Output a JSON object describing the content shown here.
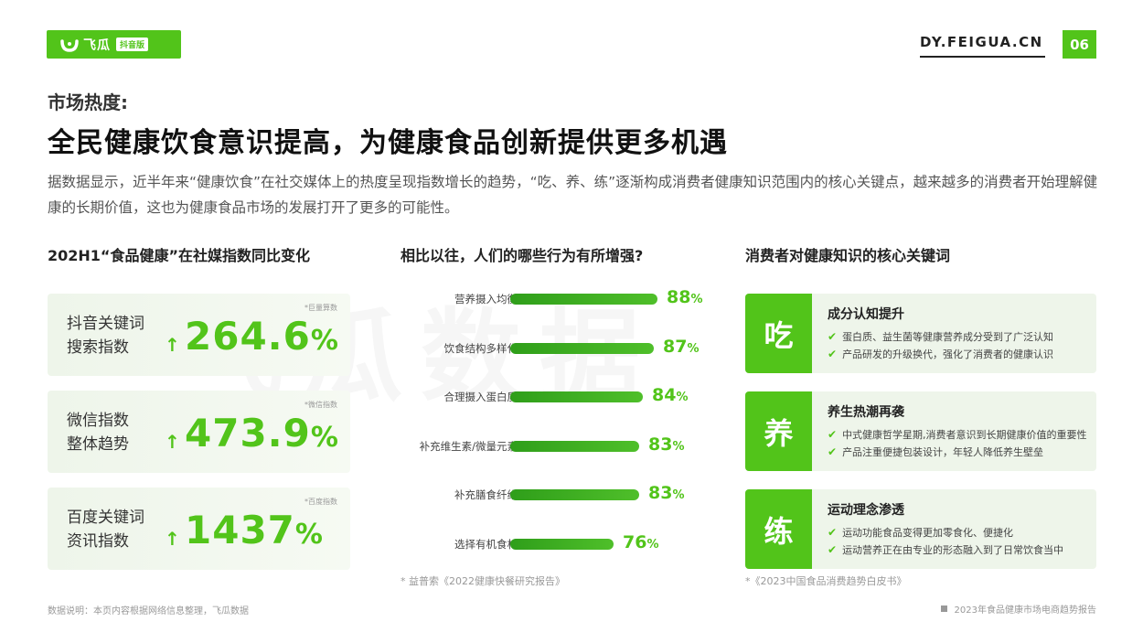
{
  "header": {
    "logo_text": "飞瓜",
    "logo_sub": "抖音版",
    "site": "DY.FEIGUA.CN",
    "page_number": "06"
  },
  "kicker": "市场热度:",
  "headline": "全民健康饮食意识提高，为健康食品创新提供更多机遇",
  "lead": "据数据显示，近半年来“健康饮食”在社交媒体上的热度呈现指数增长的趋势，“吃、养、练”逐渐构成消费者健康知识范围内的核心关键点，越来越多的消费者开始理解健康的长期价值，这也为健康食品市场的发展打开了更多的可能性。",
  "watermark": "飞瓜数据",
  "left": {
    "title": "202H1“食品健康”在社媒指数同比变化",
    "cards": [
      {
        "note": "*巨量算数",
        "label1": "抖音关键词",
        "label2": "搜索指数",
        "arrow": "↑",
        "value": "264.6",
        "unit": "%"
      },
      {
        "note": "*微信指数",
        "label1": "微信指数",
        "label2": "整体趋势",
        "arrow": "↑",
        "value": "473.9",
        "unit": "%"
      },
      {
        "note": "*百度指数",
        "label1": "百度关键词",
        "label2": "资讯指数",
        "arrow": "↑",
        "value": "1437",
        "unit": "%"
      }
    ]
  },
  "middle": {
    "title": "相比以往，人们的哪些行为有所增强?",
    "source": "* 益普索《2022健康快餐研究报告》",
    "chart_data": {
      "type": "bar",
      "orientation": "horizontal",
      "categories": [
        "营养摄入均衡",
        "饮食结构多样化",
        "合理摄入蛋白质",
        "补充维生素/微量元素",
        "补充膳食纤维",
        "选择有机食材"
      ],
      "values": [
        88,
        87,
        84,
        83,
        83,
        76
      ],
      "value_labels": [
        "88",
        "87",
        "84",
        "83",
        "83",
        "76"
      ],
      "unit": "%",
      "bar_color": "#52c41a"
    }
  },
  "right": {
    "title": "消费者对健康知识的核心关键词",
    "source": "*《2023中国食品消费趋势白皮书》",
    "cards": [
      {
        "char": "吃",
        "title": "成分认知提升",
        "lines": [
          "蛋白质、益生菌等健康营养成分受到了广泛认知",
          "产品研发的升级换代，强化了消费者的健康认识"
        ]
      },
      {
        "char": "养",
        "title": "养生热潮再袭",
        "lines": [
          "中式健康哲学星期,消费者意识到长期健康价值的重要性",
          "产品注重便捷包装设计，年轻人降低养生壁垒"
        ]
      },
      {
        "char": "练",
        "title": "运动理念渗透",
        "lines": [
          "运动功能食品变得更加零食化、便捷化",
          "运动营养正在由专业的形态融入到了日常饮食当中"
        ]
      }
    ]
  },
  "footer": {
    "left": "数据说明：本页内容根据网络信息整理，飞瓜数据",
    "right": "2023年食品健康市场电商趋势报告"
  },
  "colors": {
    "accent": "#52c41a"
  }
}
